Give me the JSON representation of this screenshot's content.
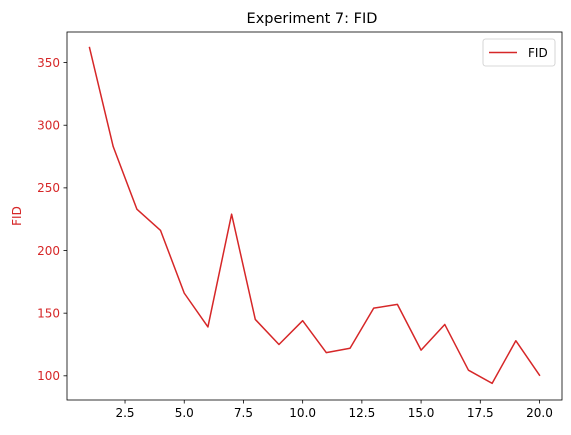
{
  "chart_data": {
    "type": "line",
    "title": "Experiment 7: FID",
    "xlabel": "",
    "ylabel": "FID",
    "xlim": [
      0.05,
      20.95
    ],
    "ylim": [
      80.7,
      374.4
    ],
    "xticks": [
      2.5,
      5.0,
      7.5,
      10.0,
      12.5,
      15.0,
      17.5,
      20.0
    ],
    "xtick_labels": [
      "2.5",
      "5.0",
      "7.5",
      "10.0",
      "12.5",
      "15.0",
      "17.5",
      "20.0"
    ],
    "yticks": [
      100,
      150,
      200,
      250,
      300,
      350
    ],
    "ytick_labels": [
      "100",
      "150",
      "200",
      "250",
      "300",
      "350"
    ],
    "grid": false,
    "legend_position": "top-right",
    "accent_color": "#d62728",
    "series": [
      {
        "name": "FID",
        "color": "#d62728",
        "x": [
          1,
          2,
          3,
          4,
          5,
          6,
          7,
          8,
          9,
          10,
          11,
          12,
          13,
          14,
          15,
          16,
          17,
          18,
          19,
          20
        ],
        "y": [
          362,
          283,
          233,
          216,
          166,
          139,
          229,
          145,
          125,
          144,
          118.5,
          122,
          154,
          157,
          120.5,
          141,
          104.5,
          94,
          128,
          100.5
        ]
      }
    ]
  }
}
